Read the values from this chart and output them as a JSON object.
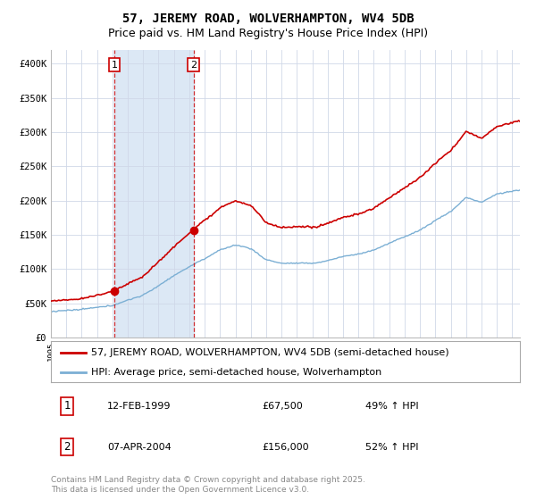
{
  "title": "57, JEREMY ROAD, WOLVERHAMPTON, WV4 5DB",
  "subtitle": "Price paid vs. HM Land Registry's House Price Index (HPI)",
  "background_color": "#ffffff",
  "plot_bg_color": "#ffffff",
  "grid_color": "#d0d8e8",
  "red_line_color": "#cc0000",
  "blue_line_color": "#7bafd4",
  "shade_color": "#dce8f5",
  "red_dashed_color": "#cc0000",
  "ylim": [
    0,
    420000
  ],
  "yticks": [
    0,
    50000,
    100000,
    150000,
    200000,
    250000,
    300000,
    350000,
    400000
  ],
  "ytick_labels": [
    "£0",
    "£50K",
    "£100K",
    "£150K",
    "£200K",
    "£250K",
    "£300K",
    "£350K",
    "£400K"
  ],
  "sale1_year": 1999.12,
  "sale1_price": 67500,
  "sale2_year": 2004.27,
  "sale2_price": 156000,
  "legend_line1": "57, JEREMY ROAD, WOLVERHAMPTON, WV4 5DB (semi-detached house)",
  "legend_line2": "HPI: Average price, semi-detached house, Wolverhampton",
  "table_rows": [
    {
      "num": "1",
      "date": "12-FEB-1999",
      "price": "£67,500",
      "hpi": "49% ↑ HPI"
    },
    {
      "num": "2",
      "date": "07-APR-2004",
      "price": "£156,000",
      "hpi": "52% ↑ HPI"
    }
  ],
  "footnote": "Contains HM Land Registry data © Crown copyright and database right 2025.\nThis data is licensed under the Open Government Licence v3.0.",
  "title_fontsize": 10,
  "subtitle_fontsize": 9,
  "tick_fontsize": 7.5,
  "legend_fontsize": 8,
  "table_fontsize": 8,
  "footnote_fontsize": 6.5
}
